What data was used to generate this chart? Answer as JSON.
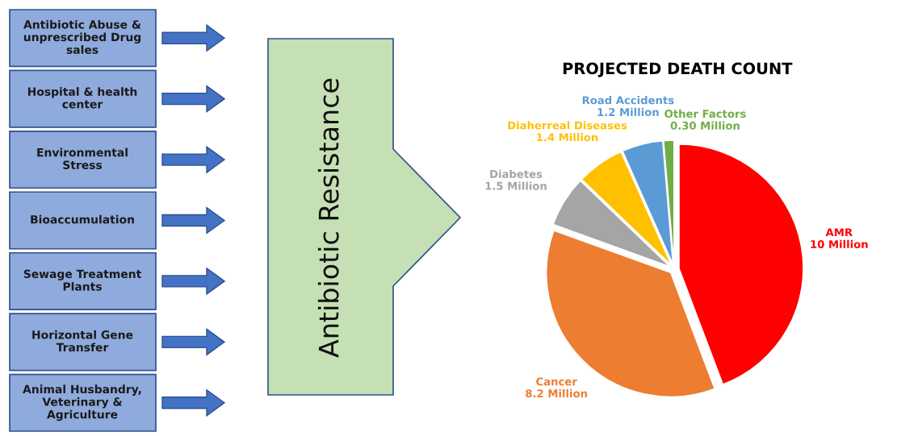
{
  "chart_data": [
    {
      "type": "other",
      "annotations": [
        "Antibiotic Abuse &\nunprescribed Drug\nsales",
        "Hospital & health\ncenter",
        "Environmental\nStress",
        "Bioaccumulation",
        "Sewage Treatment\nPlants",
        "Horizontal Gene\nTransfer",
        "Animal Husbandry,\nVeterinary &\nAgriculture",
        "Antibiotic Resistance"
      ]
    },
    {
      "type": "pie",
      "title": "PROJECTED DEATH COUNT",
      "categories": [
        "AMR",
        "Cancer",
        "Diabetes",
        "Diaherreal Diseases",
        "Road Accidents",
        "Other Factors"
      ],
      "values": [
        10,
        8.2,
        1.5,
        1.4,
        1.2,
        0.3
      ],
      "value_labels": [
        "10 Million",
        "8.2 Million",
        "1.5 Million",
        "1.4 Million",
        "1.2 Million",
        "0.30 Million"
      ],
      "colors": [
        "#ff0000",
        "#ed7d31",
        "#a5a5a5",
        "#ffc000",
        "#5b9bd5",
        "#70ad47"
      ]
    }
  ]
}
